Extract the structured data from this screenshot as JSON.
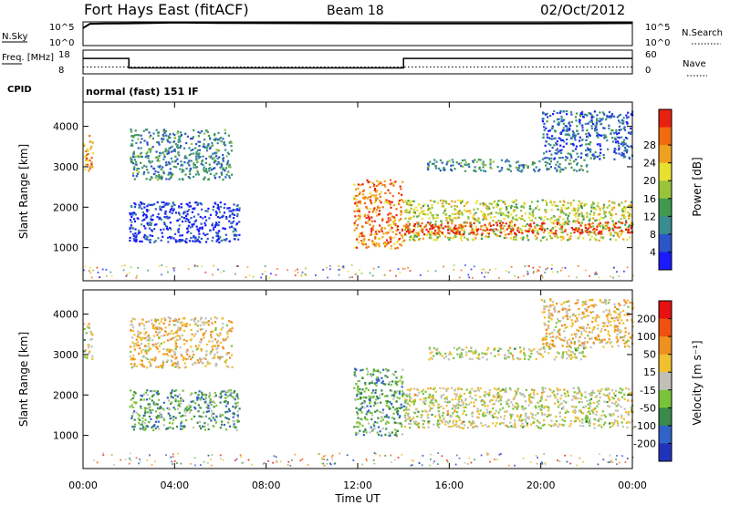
{
  "header": {
    "station": "Fort Hays East (fitACF)",
    "beam": "Beam 18",
    "date": "02/Oct/2012"
  },
  "chart_data": [
    {
      "type": "line",
      "panel": "noise",
      "left_label": "N.Sky",
      "right_label": "N.Search",
      "left_ticks": [
        "10^5",
        "10^0"
      ],
      "right_ticks": [
        "10^5",
        "10^0"
      ],
      "x": [
        0,
        0.3,
        1,
        2,
        3,
        4,
        5,
        6,
        8,
        10,
        12,
        14,
        16,
        18,
        20,
        22,
        24
      ],
      "series": [
        {
          "values": [
            5000,
            40000,
            45000,
            50000,
            60000,
            70000,
            65000,
            60000,
            55000,
            52000,
            50000,
            48000,
            47000,
            46000,
            45000,
            50000,
            55000
          ]
        }
      ],
      "yscale": "log",
      "ylim": [
        1,
        100000
      ]
    },
    {
      "type": "line",
      "panel": "frequency",
      "left_label": "Freq. [MHz]",
      "right_label": "Nave",
      "left_ticks": [
        "18",
        "8"
      ],
      "right_ticks": [
        "60",
        "0"
      ],
      "x": [
        0,
        2,
        2,
        14,
        14,
        24
      ],
      "series": [
        {
          "values": [
            14.5,
            14.5,
            10.5,
            10.5,
            14.5,
            14.5
          ]
        }
      ],
      "ylim": [
        8,
        18
      ]
    },
    {
      "type": "text",
      "panel": "cpid",
      "label": "CPID",
      "value": "normal (fast) 151 IF"
    },
    {
      "type": "heatmap",
      "panel": "power",
      "ylabel": "Slant Range [km]",
      "yticks": [
        "1000",
        "2000",
        "3000",
        "4000"
      ],
      "ylim": [
        180,
        4600
      ],
      "xlim": [
        0,
        24
      ],
      "colorbar_label": "Power [dB]",
      "colorbar_ticks": [
        "4",
        "8",
        "12",
        "16",
        "20",
        "24",
        "28"
      ],
      "colorbar_colors": [
        "#1a1aff",
        "#2b55c8",
        "#3a8d8f",
        "#3f9a4e",
        "#98c43a",
        "#e8e030",
        "#f0a020",
        "#f06a10",
        "#e82010"
      ],
      "regions": [
        {
          "x0": 0.0,
          "x1": 0.4,
          "r0": 2900,
          "r1": 3800,
          "level": 0.75
        },
        {
          "x0": 2.0,
          "x1": 6.5,
          "r0": 2700,
          "r1": 3950,
          "level": 0.3
        },
        {
          "x0": 2.0,
          "x1": 6.8,
          "r0": 1150,
          "r1": 2150,
          "level": 0.1
        },
        {
          "x0": 11.8,
          "x1": 14.0,
          "r0": 1000,
          "r1": 2700,
          "level": 0.8
        },
        {
          "x0": 14.0,
          "x1": 24.0,
          "r0": 1200,
          "r1": 2200,
          "level": 0.55
        },
        {
          "x0": 14.0,
          "x1": 24.0,
          "r0": 1350,
          "r1": 1650,
          "level": 0.92
        },
        {
          "x0": 15.0,
          "x1": 22.0,
          "r0": 2900,
          "r1": 3200,
          "level": 0.3
        },
        {
          "x0": 20.0,
          "x1": 24.0,
          "r0": 3200,
          "r1": 4400,
          "level": 0.2
        }
      ]
    },
    {
      "type": "heatmap",
      "panel": "velocity",
      "ylabel": "Slant Range [km]",
      "yticks": [
        "1000",
        "2000",
        "3000",
        "4000"
      ],
      "ylim": [
        180,
        4600
      ],
      "xlim": [
        0,
        24
      ],
      "xticks": [
        "00:00",
        "04:00",
        "08:00",
        "12:00",
        "16:00",
        "20:00",
        "00:00"
      ],
      "xlabel": "Time UT",
      "colorbar_label": "Velocity [m s⁻¹]",
      "colorbar_ticks": [
        "200",
        "100",
        "50",
        "15",
        "-15",
        "-50",
        "-100",
        "-200"
      ],
      "colorbar_colors": [
        "#2233bb",
        "#2f63c8",
        "#3a8a4a",
        "#7ac43a",
        "#c0c0b8",
        "#f0c030",
        "#f09020",
        "#f05010",
        "#e81010"
      ],
      "regions": [
        {
          "x0": 0.0,
          "x1": 0.4,
          "r0": 2900,
          "r1": 3800,
          "level": 0.5
        },
        {
          "x0": 2.0,
          "x1": 6.5,
          "r0": 2700,
          "r1": 3950,
          "level": 0.6
        },
        {
          "x0": 2.0,
          "x1": 6.8,
          "r0": 1150,
          "r1": 2150,
          "level": 0.33
        },
        {
          "x0": 11.8,
          "x1": 14.0,
          "r0": 1000,
          "r1": 2700,
          "level": 0.33
        },
        {
          "x0": 14.0,
          "x1": 24.0,
          "r0": 1200,
          "r1": 2200,
          "level": 0.5
        },
        {
          "x0": 15.0,
          "x1": 22.0,
          "r0": 2900,
          "r1": 3200,
          "level": 0.5
        },
        {
          "x0": 20.0,
          "x1": 24.0,
          "r0": 3200,
          "r1": 4400,
          "level": 0.6
        }
      ]
    }
  ]
}
